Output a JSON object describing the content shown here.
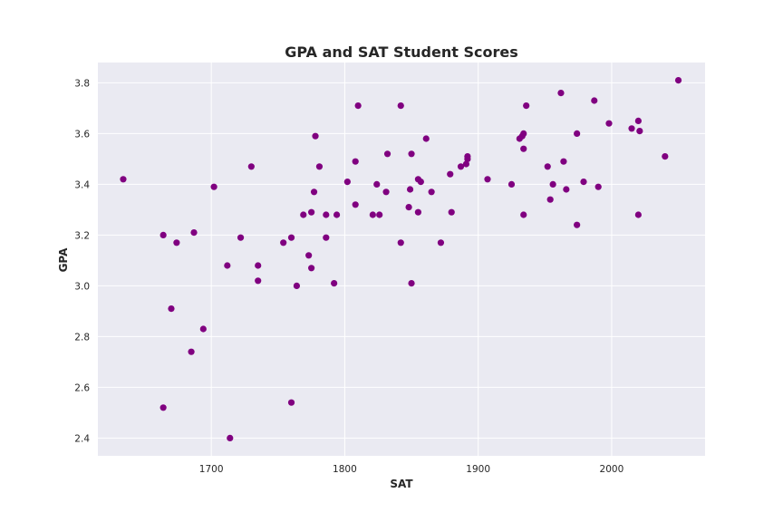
{
  "chart_data": {
    "type": "scatter",
    "title": "GPA and SAT Student Scores",
    "xlabel": "SAT",
    "ylabel": "GPA",
    "xlim": [
      1615,
      2070
    ],
    "ylim": [
      2.33,
      3.88
    ],
    "xticks": [
      1700,
      1800,
      1900,
      2000
    ],
    "yticks": [
      2.4,
      2.6,
      2.8,
      3.0,
      3.2,
      3.4,
      3.6,
      3.8
    ],
    "xtick_labels": [
      "1700",
      "1800",
      "1900",
      "2000"
    ],
    "ytick_labels": [
      "2.4",
      "2.6",
      "2.8",
      "3.0",
      "3.2",
      "3.4",
      "3.6",
      "3.8"
    ],
    "grid": true,
    "colors": {
      "background": "#eaeaf2",
      "grid": "#ffffff",
      "point": "#800080"
    },
    "series": [
      {
        "points": [
          [
            1634,
            3.42
          ],
          [
            1664,
            3.2
          ],
          [
            1664,
            2.52
          ],
          [
            1670,
            2.91
          ],
          [
            1674,
            3.17
          ],
          [
            1685,
            2.74
          ],
          [
            1687,
            3.21
          ],
          [
            1694,
            2.83
          ],
          [
            1702,
            3.39
          ],
          [
            1712,
            3.08
          ],
          [
            1714,
            2.4
          ],
          [
            1722,
            3.19
          ],
          [
            1730,
            3.47
          ],
          [
            1735,
            3.08
          ],
          [
            1735,
            3.02
          ],
          [
            1754,
            3.17
          ],
          [
            1760,
            3.19
          ],
          [
            1760,
            2.54
          ],
          [
            1764,
            3.0
          ],
          [
            1769,
            3.28
          ],
          [
            1773,
            3.12
          ],
          [
            1775,
            3.29
          ],
          [
            1775,
            3.07
          ],
          [
            1777,
            3.37
          ],
          [
            1778,
            3.59
          ],
          [
            1781,
            3.47
          ],
          [
            1786,
            3.28
          ],
          [
            1786,
            3.19
          ],
          [
            1792,
            3.01
          ],
          [
            1794,
            3.28
          ],
          [
            1802,
            3.41
          ],
          [
            1808,
            3.49
          ],
          [
            1808,
            3.32
          ],
          [
            1810,
            3.71
          ],
          [
            1821,
            3.28
          ],
          [
            1824,
            3.4
          ],
          [
            1826,
            3.28
          ],
          [
            1831,
            3.37
          ],
          [
            1832,
            3.52
          ],
          [
            1842,
            3.71
          ],
          [
            1842,
            3.17
          ],
          [
            1848,
            3.31
          ],
          [
            1849,
            3.38
          ],
          [
            1850,
            3.52
          ],
          [
            1850,
            3.01
          ],
          [
            1855,
            3.42
          ],
          [
            1855,
            3.29
          ],
          [
            1857,
            3.41
          ],
          [
            1861,
            3.58
          ],
          [
            1865,
            3.37
          ],
          [
            1872,
            3.17
          ],
          [
            1879,
            3.44
          ],
          [
            1880,
            3.29
          ],
          [
            1887,
            3.47
          ],
          [
            1891,
            3.48
          ],
          [
            1892,
            3.5
          ],
          [
            1892,
            3.51
          ],
          [
            1907,
            3.42
          ],
          [
            1925,
            3.4
          ],
          [
            1931,
            3.58
          ],
          [
            1933,
            3.59
          ],
          [
            1934,
            3.6
          ],
          [
            1934,
            3.54
          ],
          [
            1934,
            3.28
          ],
          [
            1936,
            3.71
          ],
          [
            1952,
            3.47
          ],
          [
            1954,
            3.34
          ],
          [
            1956,
            3.4
          ],
          [
            1962,
            3.76
          ],
          [
            1964,
            3.49
          ],
          [
            1966,
            3.38
          ],
          [
            1974,
            3.6
          ],
          [
            1974,
            3.24
          ],
          [
            1979,
            3.41
          ],
          [
            1987,
            3.73
          ],
          [
            1990,
            3.39
          ],
          [
            1998,
            3.64
          ],
          [
            2015,
            3.62
          ],
          [
            2020,
            3.65
          ],
          [
            2020,
            3.28
          ],
          [
            2021,
            3.61
          ],
          [
            2040,
            3.51
          ],
          [
            2050,
            3.81
          ]
        ]
      }
    ]
  }
}
